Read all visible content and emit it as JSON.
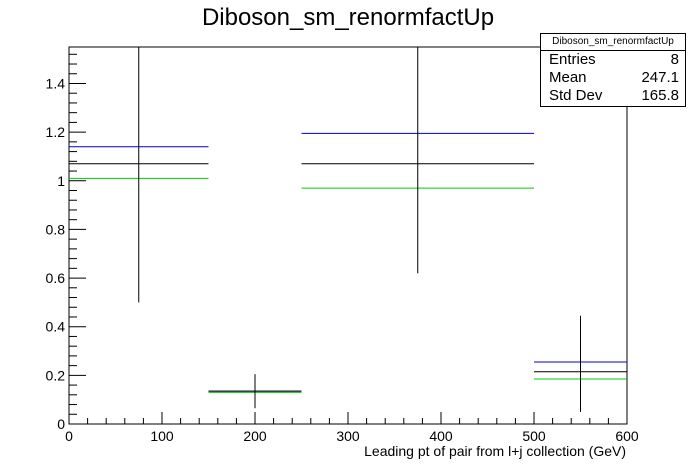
{
  "chart_data": {
    "type": "histogram",
    "title": "Diboson_sm_renormfactUp",
    "xlabel": "Leading pt of pair from l+j collection (GeV)",
    "ylabel": "",
    "xlim": [
      0,
      600
    ],
    "ylim": [
      0,
      1.55
    ],
    "x_ticks": [
      0,
      100,
      200,
      300,
      400,
      500,
      600
    ],
    "y_ticks": [
      0,
      0.2,
      0.4,
      0.6,
      0.8,
      1,
      1.2,
      1.4
    ],
    "x_tick_labels": [
      "0",
      "100",
      "200",
      "300",
      "400",
      "500",
      "600"
    ],
    "y_tick_labels": [
      "0",
      "0.2",
      "0.4",
      "0.6",
      "0.8",
      "1",
      "1.2",
      "1.4"
    ],
    "grid": false,
    "bins": [
      {
        "low": 0,
        "high": 150,
        "nominal": 1.07,
        "up": 1.14,
        "down": 1.01,
        "err_low": 0.5,
        "err_high": 1.55
      },
      {
        "low": 150,
        "high": 250,
        "nominal": 0.135,
        "up": 0.135,
        "down": 0.13,
        "err_low": 0.065,
        "err_high": 0.205
      },
      {
        "low": 250,
        "high": 500,
        "nominal": 1.07,
        "up": 1.195,
        "down": 0.97,
        "err_low": 0.62,
        "err_high": 1.55
      },
      {
        "low": 500,
        "high": 600,
        "nominal": 0.215,
        "up": 0.255,
        "down": 0.185,
        "err_low": 0.05,
        "err_high": 0.445
      }
    ],
    "colors": {
      "nominal": "#000000",
      "up": "#0000cc",
      "down": "#00cc00"
    }
  },
  "stats_box": {
    "title": "Diboson_sm_renormfactUp",
    "entries_label": "Entries",
    "entries_value": "8",
    "mean_label": "Mean",
    "mean_value": "247.1",
    "stddev_label": "Std Dev",
    "stddev_value": "165.8"
  }
}
